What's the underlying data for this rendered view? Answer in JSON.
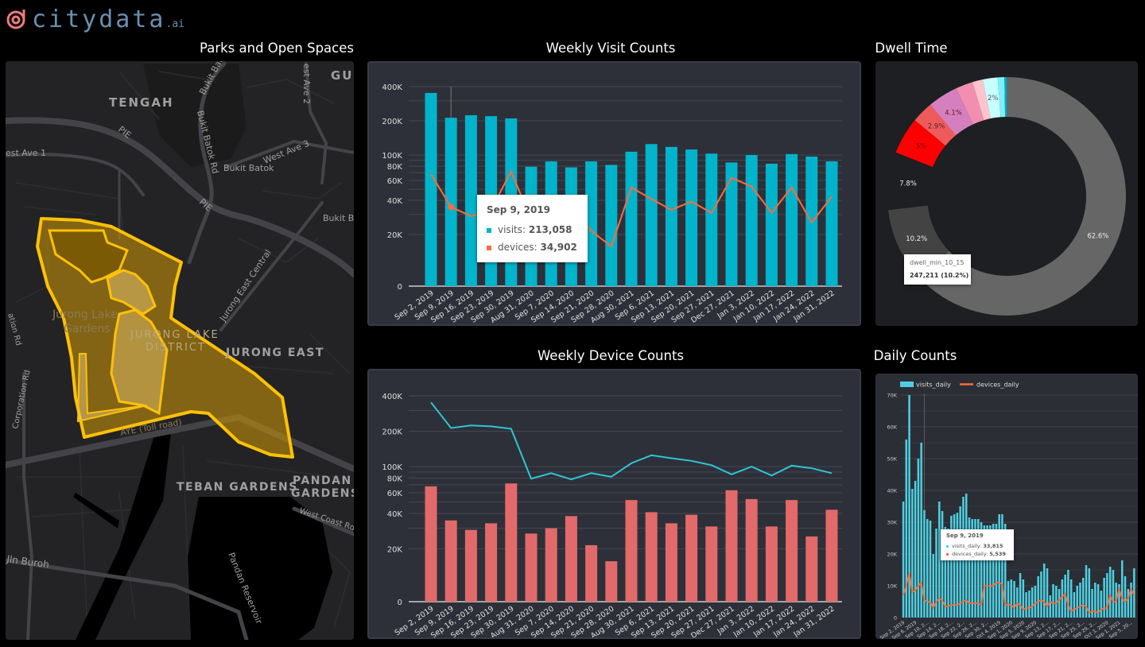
{
  "brand": {
    "name": "citydata",
    "suffix": ".ai",
    "logo_color": "#f07a7a",
    "text_color": "#6b8fb0"
  },
  "titles": {
    "map": "Parks and Open Spaces",
    "weekly_visits": "Weekly Visit Counts",
    "dwell": "Dwell Time",
    "weekly_devices": "Weekly Device Counts",
    "daily": "Daily Counts"
  },
  "map": {
    "highlight_color": "#ffc107",
    "labels": {
      "tengah": "TENGAH",
      "gui": "GUI",
      "pie1": "PIE",
      "pie2": "PIE",
      "bukit_bat": "Bukit Bat",
      "bukit_batok_rd": "Bukit Batok Rd",
      "west_ave_2": "est Ave 2",
      "bukit_batok": "Bukit Batok",
      "west_ave_3": "West Ave 3",
      "west_ave_1": "est Ave 1",
      "bukit_ba": "Bukit Ba",
      "jurong_east_central": "Jurong East Central",
      "jurong_lake": "Jurong Lake",
      "gardens": "Gardens",
      "jld1": "JURONG LAKE",
      "jld2": "DISTRICT",
      "jurong_east": "JURONG EAST",
      "corporation_rd": "Corporation Rd",
      "ation_rd": "ation Rd",
      "aye": "AYE (Toll road)",
      "teban": "TEBAN GARDENS",
      "pandan1": "PANDAN",
      "pandan2": "GARDENS",
      "west_coast": "West Coast Rd",
      "reservoir": "Pandan Reservoir",
      "buroh": "Jln Buroh"
    }
  },
  "chart_data": [
    {
      "type": "bar",
      "title": "Weekly Visit Counts",
      "scale": "log",
      "categories": [
        "Sep 2, 2019",
        "Sep 9, 2019",
        "Sep 16, 2019",
        "Sep 23, 2019",
        "Sep 30, 2019",
        "Aug 31, 2020",
        "Sep 7, 2020",
        "Sep 14, 2020",
        "Sep 21, 2020",
        "Sep 28, 2020",
        "Aug 30, 2021",
        "Sep 6, 2021",
        "Sep 13, 2021",
        "Sep 20, 2021",
        "Sep 27, 2021",
        "Dec 27, 2021",
        "Jan 3, 2022",
        "Jan 10, 2022",
        "Jan 17, 2022",
        "Jan 24, 2022",
        "Jan 31, 2022"
      ],
      "y_ticks": [
        {
          "label": "0",
          "value": 0
        },
        {
          "label": "20K",
          "value": 20000
        },
        {
          "label": "40K",
          "value": 40000
        },
        {
          "label": "60K",
          "value": 60000
        },
        {
          "label": "80K",
          "value": 80000
        },
        {
          "label": "100K",
          "value": 100000
        },
        {
          "label": "200K",
          "value": 200000
        },
        {
          "label": "400K",
          "value": 400000
        }
      ],
      "series": [
        {
          "name": "visits",
          "kind": "bar",
          "color": "#00b4cc",
          "values": [
            352000,
            213058,
            224000,
            220000,
            210000,
            79000,
            88000,
            78000,
            88000,
            82000,
            107000,
            125000,
            118000,
            112000,
            103000,
            86000,
            100000,
            84000,
            102000,
            97000,
            88000
          ]
        },
        {
          "name": "devices",
          "kind": "line",
          "color": "#ff6b3d",
          "values": [
            68000,
            34902,
            29000,
            33000,
            72000,
            27000,
            30000,
            38000,
            21500,
            15700,
            52000,
            41000,
            33000,
            39000,
            31000,
            63000,
            53000,
            31000,
            52000,
            25500,
            43000
          ]
        }
      ],
      "tooltip": {
        "title": "Sep 9, 2019",
        "rows": [
          {
            "label": "visits",
            "value": "213,058"
          },
          {
            "label": "devices",
            "value": "34,902"
          }
        ]
      }
    },
    {
      "type": "bar",
      "title": "Weekly Device Counts",
      "scale": "log",
      "categories": [
        "Sep 2, 2019",
        "Sep 9, 2019",
        "Sep 16, 2019",
        "Sep 23, 2019",
        "Sep 30, 2019",
        "Aug 31, 2020",
        "Sep 7, 2020",
        "Sep 14, 2020",
        "Sep 21, 2020",
        "Sep 28, 2020",
        "Aug 30, 2021",
        "Sep 6, 2021",
        "Sep 13, 2021",
        "Sep 20, 2021",
        "Sep 27, 2021",
        "Dec 27, 2021",
        "Jan 3, 2022",
        "Jan 10, 2022",
        "Jan 17, 2022",
        "Jan 24, 2022",
        "Jan 31, 2022"
      ],
      "y_ticks": [
        {
          "label": "0",
          "value": 0
        },
        {
          "label": "20K",
          "value": 20000
        },
        {
          "label": "40K",
          "value": 40000
        },
        {
          "label": "60K",
          "value": 60000
        },
        {
          "label": "80K",
          "value": 80000
        },
        {
          "label": "100K",
          "value": 100000
        },
        {
          "label": "200K",
          "value": 200000
        },
        {
          "label": "400K",
          "value": 400000
        }
      ],
      "series": [
        {
          "name": "devices",
          "kind": "bar",
          "color": "#e36a6a",
          "values": [
            68000,
            34902,
            29000,
            33000,
            72000,
            27000,
            30000,
            38000,
            21500,
            15700,
            52000,
            41000,
            33000,
            39000,
            31000,
            63000,
            53000,
            31000,
            52000,
            25500,
            43000
          ]
        },
        {
          "name": "visits",
          "kind": "line",
          "color": "#2ec5d8",
          "values": [
            352000,
            213058,
            224000,
            220000,
            210000,
            79000,
            88000,
            78000,
            88000,
            82000,
            107000,
            125000,
            118000,
            112000,
            103000,
            86000,
            100000,
            84000,
            102000,
            97000,
            88000
          ]
        }
      ]
    },
    {
      "type": "pie",
      "title": "Dwell Time",
      "donut": true,
      "slices": [
        {
          "value": 62.6,
          "label": "62.6%",
          "color": "#666666"
        },
        {
          "value": 10.2,
          "label": "10.2%",
          "color": "#434343"
        },
        {
          "value": 7.8,
          "label": "7.8%",
          "color": "#1e1f23"
        },
        {
          "value": 5.0,
          "label": "5%",
          "color": "#ff0000"
        },
        {
          "value": 2.9,
          "label": "2.9%",
          "color": "#ef5b5b"
        },
        {
          "value": 4.1,
          "label": "4.1%",
          "color": "#d67fbf"
        },
        {
          "value": 2.3,
          "label": "",
          "color": "#f28fb0"
        },
        {
          "value": 1.4,
          "label": "",
          "color": "#ffc4cc"
        },
        {
          "value": 2.0,
          "label": "2%",
          "color": "#c8ffff"
        },
        {
          "value": 0.9,
          "label": "",
          "color": "#7deff7"
        },
        {
          "value": 0.3,
          "label": "",
          "color": "#00a8c0"
        }
      ],
      "tooltip": {
        "title": "dwell_min_10_15",
        "value": "247,211 (10.2%)"
      }
    },
    {
      "type": "bar",
      "title": "Daily Counts",
      "ylim": [
        0,
        70000
      ],
      "y_ticks": [
        {
          "label": "0",
          "value": 0
        },
        {
          "label": "10K",
          "value": 10000
        },
        {
          "label": "20K",
          "value": 20000
        },
        {
          "label": "30K",
          "value": 30000
        },
        {
          "label": "40K",
          "value": 40000
        },
        {
          "label": "50K",
          "value": 50000
        },
        {
          "label": "60K",
          "value": 60000
        },
        {
          "label": "70K",
          "value": 70000
        }
      ],
      "x_tick_labels": [
        "Sep 2, 2019",
        "Sep 6, 2019",
        "Sep 10, 2...",
        "Sep 14, 2...",
        "Sep 18, 2...",
        "Sep 22, 2...",
        "Sep 26, 2...",
        "Sep 30, 2...",
        "Oct 4, 2019",
        "Sep 1, 2020",
        "Sep 5, 2020",
        "Sep 9, 2020",
        "Sep 13, 2...",
        "Sep 17, 2...",
        "Sep 21, 2...",
        "Sep 25, 2...",
        "Sep 29, 2...",
        "Oct 3, 2020",
        "Sep 1, 2021",
        "Sep 5, 20..."
      ],
      "legend": "top-left",
      "series": [
        {
          "name": "visits_daily",
          "kind": "bar",
          "color": "#4dd0e1",
          "values": [
            36500,
            56000,
            70000,
            40500,
            43000,
            50000,
            55000,
            33815,
            31000,
            30500,
            20000,
            28000,
            36500,
            33500,
            28500,
            28000,
            32000,
            32500,
            33000,
            35000,
            38000,
            39000,
            31500,
            31000,
            31000,
            31000,
            30000,
            29000,
            29000,
            29000,
            29500,
            29500,
            32500,
            32500,
            29500,
            11500,
            12000,
            11500,
            9500,
            14000,
            12000,
            8000,
            8500,
            9500,
            10000,
            13000,
            14500,
            17000,
            15500,
            7000,
            10500,
            10000,
            9000,
            12000,
            13500,
            15000,
            12000,
            8000,
            10000,
            11000,
            12500,
            16500,
            15500,
            9000,
            11000,
            10500,
            8500,
            12500,
            14000,
            16000,
            15000,
            11000,
            10500,
            18000,
            13000,
            9000,
            11000,
            15500
          ]
        },
        {
          "name": "devices_daily",
          "kind": "line",
          "color": "#ff6a33",
          "values": [
            7000,
            10000,
            14000,
            8000,
            8500,
            10000,
            11000,
            5539,
            5000,
            5000,
            3000,
            5000,
            6000,
            5500,
            3500,
            3500,
            4000,
            4000,
            4000,
            4500,
            5000,
            5500,
            4500,
            4500,
            4500,
            4500,
            4000,
            10000,
            10000,
            10000,
            10000,
            11000,
            11000,
            10500,
            4000,
            4000,
            4000,
            3000,
            4500,
            4000,
            2500,
            3000,
            3000,
            3500,
            4500,
            5000,
            5500,
            5000,
            3500,
            5000,
            4500,
            4500,
            5500,
            6500,
            7500,
            4000,
            2000,
            2500,
            3000,
            3500,
            4000,
            3500,
            1500,
            2000,
            2000,
            1500,
            2500,
            3000,
            3000,
            7000,
            5000,
            5000,
            9000,
            6000,
            5000,
            6000,
            9000,
            7000
          ]
        }
      ],
      "tooltip": {
        "title": "Sep 9, 2019",
        "rows": [
          {
            "label": "visits_daily",
            "value": "33,815"
          },
          {
            "label": "devices_daily",
            "value": "5,539"
          }
        ]
      }
    }
  ]
}
